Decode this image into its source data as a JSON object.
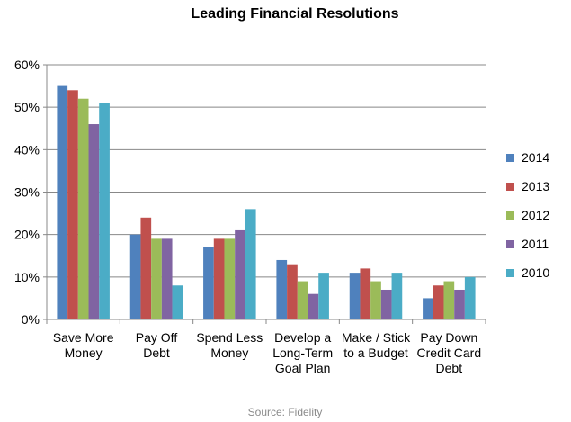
{
  "chart_data": {
    "type": "bar",
    "title": "Leading Financial Resolutions",
    "source": "Source: Fidelity",
    "xlabel": "",
    "ylabel": "",
    "ylim": [
      0,
      60
    ],
    "y_ticks": [
      "0%",
      "10%",
      "20%",
      "30%",
      "40%",
      "50%",
      "60%"
    ],
    "grid": true,
    "legend_position": "right",
    "categories": [
      [
        "Save More",
        "Money"
      ],
      [
        "Pay Off",
        "Debt"
      ],
      [
        "Spend Less",
        "Money"
      ],
      [
        "Develop a",
        "Long-Term",
        "Goal Plan"
      ],
      [
        "Make / Stick",
        "to a Budget"
      ],
      [
        "Pay Down",
        "Credit Card",
        "Debt"
      ]
    ],
    "series": [
      {
        "name": "2014",
        "color": "#4F81BD",
        "values": [
          55,
          20,
          17,
          14,
          11,
          5
        ]
      },
      {
        "name": "2013",
        "color": "#C0504D",
        "values": [
          54,
          24,
          19,
          13,
          12,
          8
        ]
      },
      {
        "name": "2012",
        "color": "#9BBB59",
        "values": [
          52,
          19,
          19,
          9,
          9,
          9
        ]
      },
      {
        "name": "2011",
        "color": "#8064A2",
        "values": [
          46,
          19,
          21,
          6,
          7,
          7
        ]
      },
      {
        "name": "2010",
        "color": "#4BACC6",
        "values": [
          51,
          8,
          26,
          11,
          11,
          10
        ]
      }
    ]
  }
}
